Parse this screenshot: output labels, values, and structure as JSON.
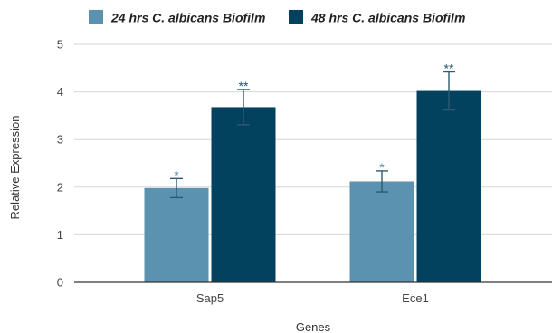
{
  "chart_data": {
    "type": "bar",
    "categories": [
      "Sap5",
      "Ece1"
    ],
    "series": [
      {
        "name": "24 hrs C. albicans Biofilm",
        "color": "#5b92b0",
        "values": [
          1.98,
          2.12
        ],
        "error": [
          0.2,
          0.22
        ],
        "significance": [
          "*",
          "*"
        ]
      },
      {
        "name": "48 hrs C. albicans Biofilm",
        "color": "#02425f",
        "values": [
          3.68,
          4.02
        ],
        "error": [
          0.37,
          0.4
        ],
        "significance": [
          "**",
          "**"
        ]
      }
    ],
    "xlabel": "Genes",
    "ylabel": "Relative Expression",
    "ylim": [
      0,
      5
    ],
    "yticks": [
      0,
      1,
      2,
      3,
      4,
      5
    ],
    "grid": true,
    "legend_position": "top-left"
  }
}
